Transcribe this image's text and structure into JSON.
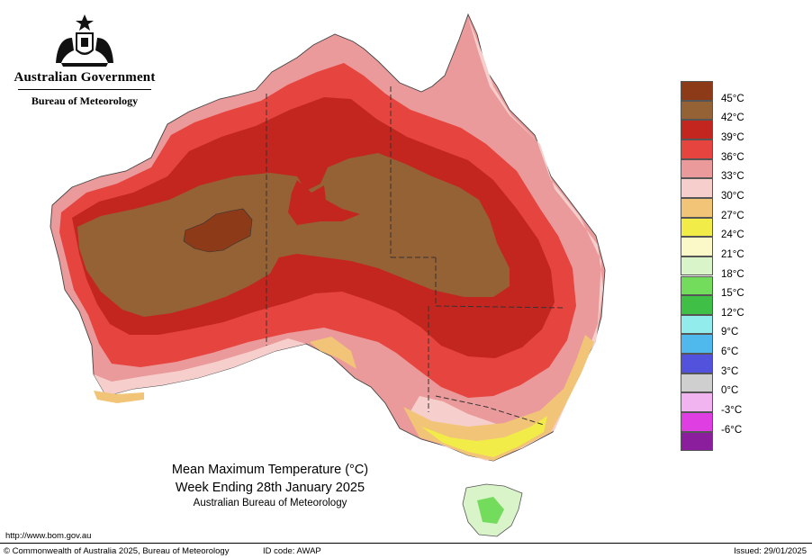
{
  "header": {
    "organisation": "Australian Government",
    "agency": "Bureau of Meteorology"
  },
  "logo": {
    "icon": "coat-of-arms-icon"
  },
  "title": {
    "line1": "Mean Maximum Temperature (°C)",
    "line2": "Week Ending 28th January 2025",
    "line3": "Australian Bureau of Meteorology"
  },
  "legend": {
    "items": [
      {
        "label": "45°C",
        "color": "#8c3a18"
      },
      {
        "label": "42°C",
        "color": "#956236"
      },
      {
        "label": "39°C",
        "color": "#c3261f"
      },
      {
        "label": "36°C",
        "color": "#e6443f"
      },
      {
        "label": "33°C",
        "color": "#ea9a9a"
      },
      {
        "label": "30°C",
        "color": "#f6cfcd"
      },
      {
        "label": "27°C",
        "color": "#f2c478"
      },
      {
        "label": "24°C",
        "color": "#f2ec48"
      },
      {
        "label": "21°C",
        "color": "#fbf9c8"
      },
      {
        "label": "18°C",
        "color": "#d9f4c8"
      },
      {
        "label": "15°C",
        "color": "#74dc5c"
      },
      {
        "label": "12°C",
        "color": "#3fbf46"
      },
      {
        "label": "9°C",
        "color": "#93ecec"
      },
      {
        "label": "6°C",
        "color": "#4fb8ec"
      },
      {
        "label": "3°C",
        "color": "#5352dc"
      },
      {
        "label": "0°C",
        "color": "#cfcfcf"
      },
      {
        "label": "-3°C",
        "color": "#f2b4f0"
      },
      {
        "label": "-6°C",
        "color": "#de3ee2"
      },
      {
        "label": "",
        "color": "#8a1e9c"
      }
    ]
  },
  "footer": {
    "url": "http://www.bom.gov.au",
    "copyright": "© Commonwealth of Australia 2025, Bureau of Meteorology",
    "id_code": "ID code: AWAP",
    "issued": "Issued: 29/01/2025"
  }
}
